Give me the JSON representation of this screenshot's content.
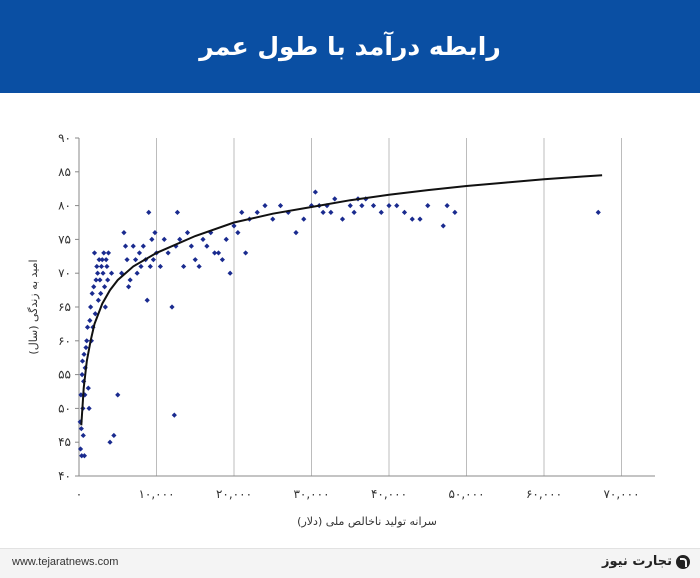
{
  "header": {
    "title": "رابطه درآمد با طول عمر"
  },
  "footer": {
    "url": "www.tejaratnews.com",
    "brand": "تجارت نیوز"
  },
  "colors": {
    "header_bg": "#0a4fa3",
    "marker": "#1a2b8f",
    "curve": "#111111",
    "grid": "#bcbcbc"
  },
  "chart_data": {
    "type": "scatter",
    "xlabel": "سرانه تولید ناخالص ملی (دلار)",
    "ylabel": "امید به زندگی (سال)",
    "xlim": [
      0,
      74000
    ],
    "ylim": [
      40,
      90
    ],
    "x_ticks": [
      0,
      10000,
      20000,
      30000,
      40000,
      50000,
      60000,
      70000
    ],
    "x_tick_labels": [
      "۰",
      "۱۰,۰۰۰",
      "۲۰,۰۰۰",
      "۳۰,۰۰۰",
      "۴۰,۰۰۰",
      "۵۰,۰۰۰",
      "۶۰,۰۰۰",
      "۷۰,۰۰۰"
    ],
    "y_ticks": [
      40,
      45,
      50,
      55,
      60,
      65,
      70,
      75,
      80,
      85,
      90
    ],
    "y_tick_labels": [
      "۴۰",
      "۴۵",
      "۵۰",
      "۵۵",
      "۶۰",
      "۶۵",
      "۷۰",
      "۷۵",
      "۸۰",
      "۸۵",
      "۹۰"
    ],
    "grid": "vertical",
    "trend": {
      "type": "logarithmic",
      "x": [
        300,
        600,
        1000,
        1500,
        2000,
        3000,
        4000,
        5000,
        7000,
        10000,
        15000,
        20000,
        25000,
        30000,
        35000,
        40000,
        45000,
        50000,
        55000,
        60000,
        65000,
        67500
      ],
      "y": [
        47.5,
        53,
        57,
        60,
        62.5,
        65.5,
        67.5,
        69,
        71,
        73,
        75.5,
        77.5,
        78.8,
        79.8,
        80.8,
        81.6,
        82.3,
        82.9,
        83.4,
        83.9,
        84.3,
        84.5
      ]
    },
    "series": [
      {
        "points": [
          [
            150,
            48
          ],
          [
            200,
            44
          ],
          [
            250,
            52
          ],
          [
            300,
            47
          ],
          [
            350,
            43
          ],
          [
            400,
            55
          ],
          [
            450,
            57
          ],
          [
            500,
            50
          ],
          [
            550,
            46
          ],
          [
            600,
            54
          ],
          [
            650,
            58
          ],
          [
            700,
            43
          ],
          [
            750,
            52
          ],
          [
            800,
            56
          ],
          [
            900,
            59
          ],
          [
            1000,
            60
          ],
          [
            1100,
            62
          ],
          [
            1200,
            53
          ],
          [
            1300,
            50
          ],
          [
            1400,
            63
          ],
          [
            1500,
            65
          ],
          [
            1600,
            60
          ],
          [
            1700,
            67
          ],
          [
            1800,
            62
          ],
          [
            1900,
            68
          ],
          [
            2000,
            73
          ],
          [
            2100,
            64
          ],
          [
            2200,
            69
          ],
          [
            2300,
            71
          ],
          [
            2400,
            70
          ],
          [
            2500,
            66
          ],
          [
            2600,
            72
          ],
          [
            2700,
            69
          ],
          [
            2800,
            67
          ],
          [
            2900,
            71
          ],
          [
            3000,
            72
          ],
          [
            3100,
            70
          ],
          [
            3200,
            73
          ],
          [
            3300,
            68
          ],
          [
            3400,
            65
          ],
          [
            3500,
            72
          ],
          [
            3600,
            71
          ],
          [
            3700,
            69
          ],
          [
            3800,
            73
          ],
          [
            4000,
            45
          ],
          [
            4200,
            70
          ],
          [
            4500,
            46
          ],
          [
            5000,
            52
          ],
          [
            5500,
            70
          ],
          [
            5800,
            76
          ],
          [
            6000,
            74
          ],
          [
            6200,
            72
          ],
          [
            6400,
            68
          ],
          [
            6600,
            69
          ],
          [
            7000,
            74
          ],
          [
            7300,
            72
          ],
          [
            7500,
            70
          ],
          [
            7800,
            73
          ],
          [
            8000,
            71
          ],
          [
            8300,
            74
          ],
          [
            8600,
            72
          ],
          [
            8800,
            66
          ],
          [
            9000,
            79
          ],
          [
            9200,
            71
          ],
          [
            9400,
            75
          ],
          [
            9600,
            72
          ],
          [
            9800,
            76
          ],
          [
            10000,
            73
          ],
          [
            10500,
            71
          ],
          [
            11000,
            75
          ],
          [
            11500,
            73
          ],
          [
            12000,
            65
          ],
          [
            12300,
            49
          ],
          [
            12500,
            74
          ],
          [
            12700,
            79
          ],
          [
            13000,
            75
          ],
          [
            13500,
            71
          ],
          [
            14000,
            76
          ],
          [
            14500,
            74
          ],
          [
            15000,
            72
          ],
          [
            15500,
            71
          ],
          [
            16000,
            75
          ],
          [
            16500,
            74
          ],
          [
            17000,
            76
          ],
          [
            17500,
            73
          ],
          [
            18000,
            73
          ],
          [
            18500,
            72
          ],
          [
            19000,
            75
          ],
          [
            19500,
            70
          ],
          [
            20000,
            77
          ],
          [
            20500,
            76
          ],
          [
            21000,
            79
          ],
          [
            21500,
            73
          ],
          [
            22000,
            78
          ],
          [
            23000,
            79
          ],
          [
            24000,
            80
          ],
          [
            25000,
            78
          ],
          [
            26000,
            80
          ],
          [
            27000,
            79
          ],
          [
            28000,
            76
          ],
          [
            29000,
            78
          ],
          [
            30000,
            80
          ],
          [
            30500,
            82
          ],
          [
            31000,
            80
          ],
          [
            31500,
            79
          ],
          [
            32000,
            80
          ],
          [
            32500,
            79
          ],
          [
            33000,
            81
          ],
          [
            34000,
            78
          ],
          [
            35000,
            80
          ],
          [
            35500,
            79
          ],
          [
            36000,
            81
          ],
          [
            36500,
            80
          ],
          [
            37000,
            81
          ],
          [
            38000,
            80
          ],
          [
            39000,
            79
          ],
          [
            40000,
            80
          ],
          [
            41000,
            80
          ],
          [
            42000,
            79
          ],
          [
            43000,
            78
          ],
          [
            44000,
            78
          ],
          [
            45000,
            80
          ],
          [
            47000,
            77
          ],
          [
            47500,
            80
          ],
          [
            48500,
            79
          ],
          [
            67000,
            79
          ]
        ]
      }
    ]
  }
}
